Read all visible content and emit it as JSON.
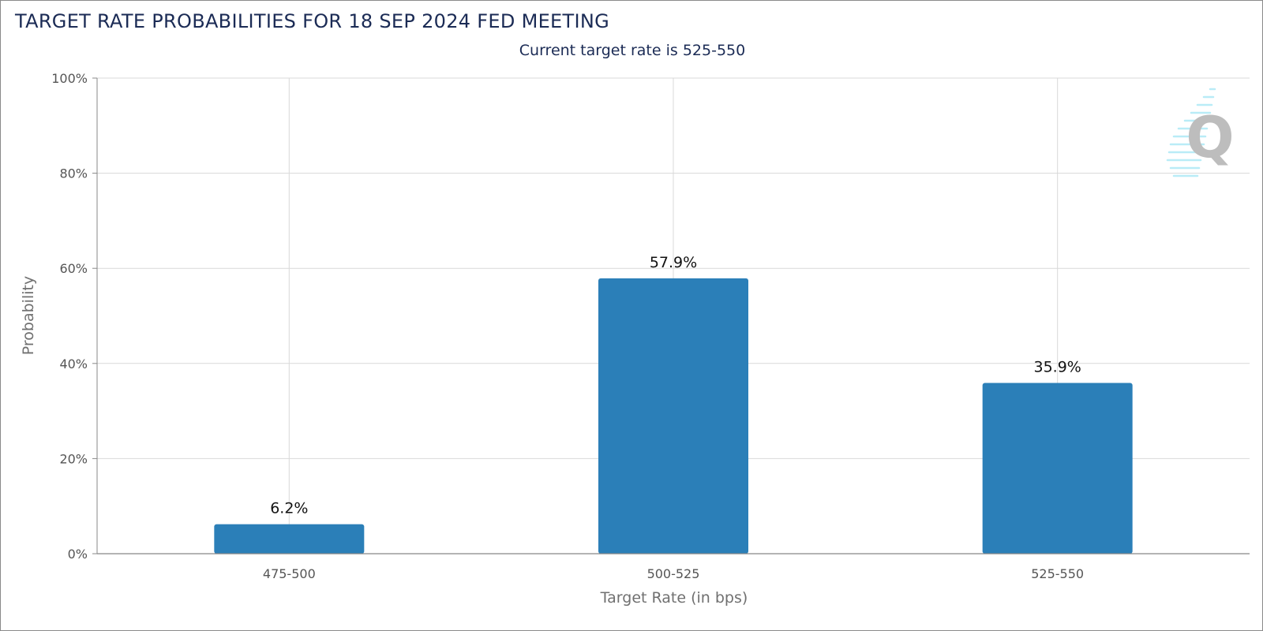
{
  "header": {
    "title": "TARGET RATE PROBABILITIES FOR 18 SEP 2024 FED MEETING",
    "subtitle": "Current target rate is 525-550"
  },
  "watermark": {
    "letter": "Q",
    "icon": "cme-fedwatch-q-logo"
  },
  "colors": {
    "bar": "#2b7fb8",
    "grid": "#d9d9d9",
    "axis": "#888888",
    "title": "#1b2b55"
  },
  "chart_data": {
    "type": "bar",
    "title": "TARGET RATE PROBABILITIES FOR 18 SEP 2024 FED MEETING",
    "subtitle": "Current target rate is 525-550",
    "xlabel": "Target Rate (in bps)",
    "ylabel": "Probability",
    "categories": [
      "475-500",
      "500-525",
      "525-550"
    ],
    "values": [
      6.2,
      57.9,
      35.9
    ],
    "data_labels": [
      "6.2%",
      "57.9%",
      "35.9%"
    ],
    "ylim": [
      0,
      100
    ],
    "yticks": [
      0,
      20,
      40,
      60,
      80,
      100
    ],
    "ytick_labels": [
      "0%",
      "20%",
      "40%",
      "60%",
      "80%",
      "100%"
    ],
    "grid": true,
    "legend": "none"
  }
}
